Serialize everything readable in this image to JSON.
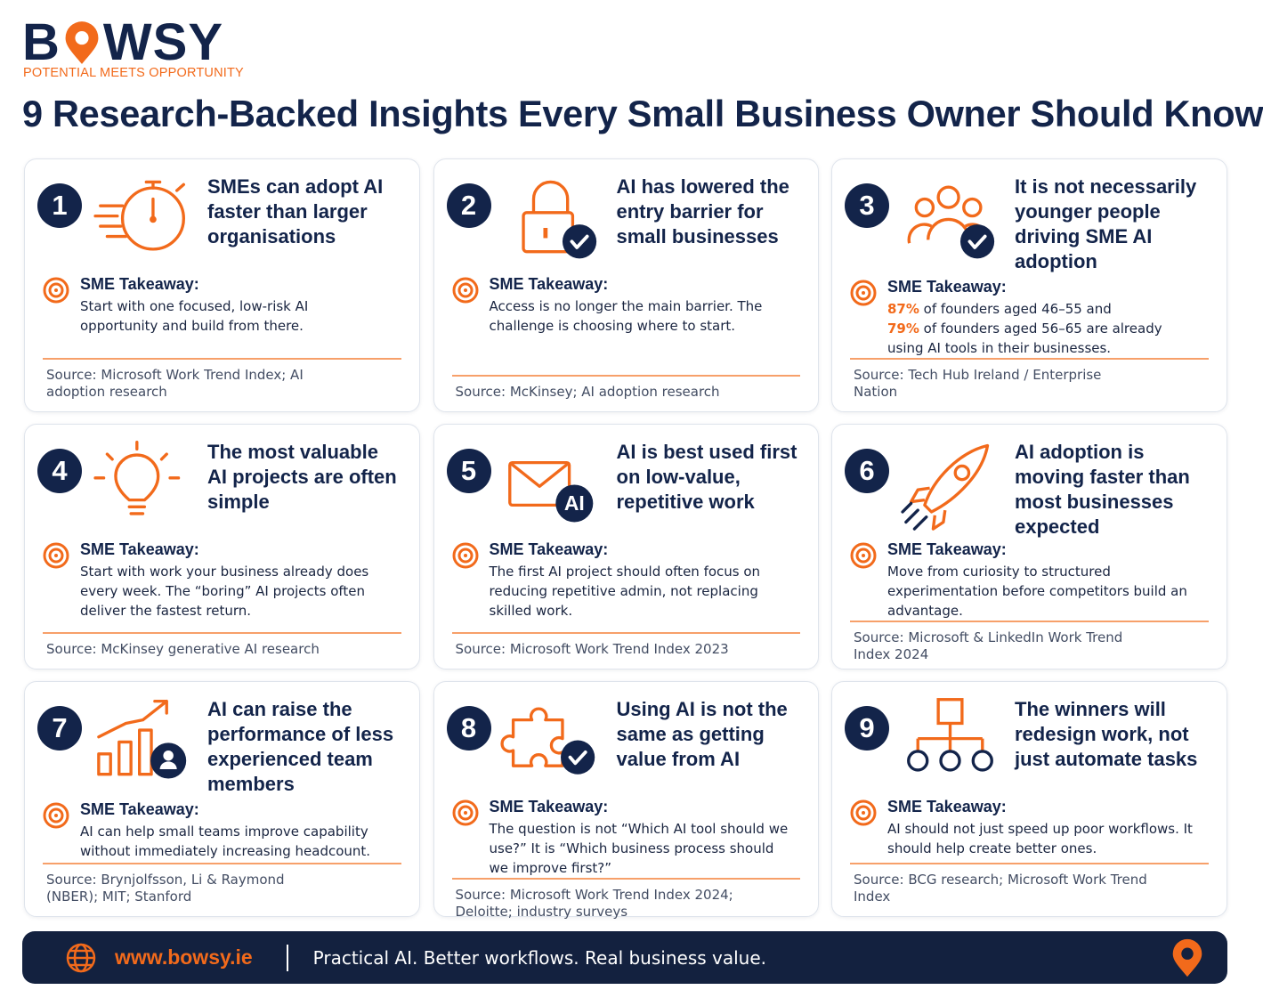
{
  "header": {
    "logo_left": "B",
    "logo_right": "WSY",
    "tagline": "POTENTIAL MEETS OPPORTUNITY",
    "title": "9 Research-Backed Insights Every Small Business Owner Should Know"
  },
  "cards": [
    {
      "number": "1",
      "heading": "SMEs can adopt AI faster than larger organisations",
      "takeaway_label": "SME Takeaway:",
      "takeaway": "Start with one focused, low-risk AI opportunity and build from there.",
      "source": "Source: Microsoft Work Trend Index; AI adoption research"
    },
    {
      "number": "2",
      "heading": "AI has lowered the entry barrier for small businesses",
      "takeaway_label": "SME Takeaway:",
      "takeaway": "Access is no longer the main barrier. The challenge is choosing where to start.",
      "source": "Source: McKinsey; AI adoption research"
    },
    {
      "number": "3",
      "heading": "It is not necessarily younger people driving SME AI adoption",
      "takeaway_label": "SME Takeaway:",
      "takeaway_parts": [
        {
          "stat": "87%",
          "text": " of founders aged 46–55 and"
        },
        {
          "stat": "79%",
          "text": " of founders aged 56–65 are already using AI tools in their businesses."
        }
      ],
      "source": "Source: Tech Hub Ireland / Enterprise Nation"
    },
    {
      "number": "4",
      "heading": "The most valuable AI projects are often simple",
      "takeaway_label": "SME Takeaway:",
      "takeaway": "Start with work your business already does every week. The “boring” AI projects often deliver the fastest return.",
      "source": "Source: McKinsey generative AI research"
    },
    {
      "number": "5",
      "heading": "AI is best used first on low-value, repetitive work",
      "icon_text": "AI",
      "takeaway_label": "SME Takeaway:",
      "takeaway": "The first AI project should often focus on reducing repetitive admin, not replacing skilled work.",
      "source": "Source: Microsoft Work Trend Index 2023"
    },
    {
      "number": "6",
      "heading": "AI adoption is moving faster than most businesses expected",
      "takeaway_label": "SME Takeaway:",
      "takeaway": "Move from curiosity to structured experimentation before competitors build an advantage.",
      "source": "Source: Microsoft & LinkedIn Work Trend Index 2024"
    },
    {
      "number": "7",
      "heading": "AI can raise the performance of less experienced team members",
      "takeaway_label": "SME Takeaway:",
      "takeaway": "AI can help small teams improve capability without immediately increasing headcount.",
      "source": "Source: Brynjolfsson, Li & Raymond (NBER); MIT; Stanford"
    },
    {
      "number": "8",
      "heading": "Using AI is not the same as getting value from AI",
      "takeaway_label": "SME Takeaway:",
      "takeaway": "The question is not “Which AI tool should we use?” It is “Which business process should we improve first?”",
      "source": "Source: Microsoft Work Trend Index 2024; Deloitte; industry surveys"
    },
    {
      "number": "9",
      "heading": "The winners will redesign work, not just automate tasks",
      "takeaway_label": "SME Takeaway:",
      "takeaway": "AI should not just speed up poor workflows. It should help create better ones.",
      "source": "Source: BCG research; Microsoft Work Trend Index"
    }
  ],
  "footer": {
    "url": "www.bowsy.ie",
    "slogan": "Practical AI. Better workflows. Real business value."
  }
}
